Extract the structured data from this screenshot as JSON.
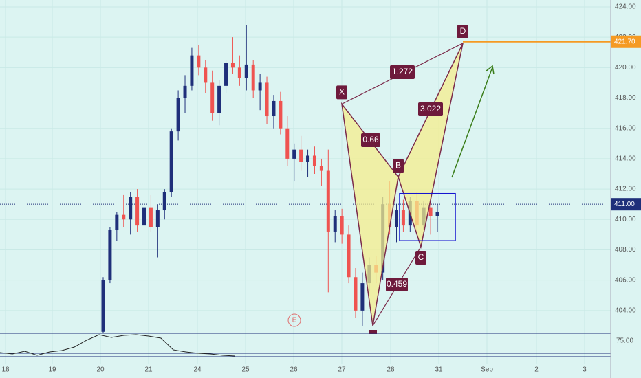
{
  "chart_data": {
    "type": "candlestick",
    "open": [
      402.6,
      406,
      409.3,
      410.3,
      410,
      411.5,
      409.6,
      410.8,
      409.5,
      410.6,
      411.8,
      415.8,
      418,
      418.8,
      420.8,
      420,
      419,
      417,
      418.8,
      420.3,
      420,
      419.3,
      420.2,
      418.5,
      419,
      416.8,
      417.8,
      416,
      414,
      414.6,
      413.8,
      414.2,
      413.5,
      413.2,
      409.2,
      410.2,
      409,
      406.2,
      404,
      405.8,
      407,
      406.5,
      411,
      409.5,
      410.6,
      409.6,
      411.2,
      409.6,
      410.8,
      410.2
    ],
    "high": [
      406.2,
      409.5,
      410.5,
      411.6,
      411.8,
      412,
      411.2,
      411.6,
      411,
      412,
      416,
      418.5,
      419.5,
      421.3,
      421.5,
      420.5,
      419.8,
      419.2,
      420.5,
      422,
      420.8,
      422.8,
      420.5,
      419.6,
      419.4,
      418.2,
      418.4,
      416.8,
      415,
      415.5,
      414.6,
      414.8,
      414,
      414.6,
      410.6,
      410.7,
      409.6,
      406.8,
      406.5,
      407.5,
      407.6,
      411.5,
      412.5,
      411,
      411.3,
      411.5,
      411.8,
      411.2,
      411.5,
      411
    ],
    "low": [
      402.5,
      405.8,
      408.6,
      409.5,
      409,
      409.2,
      408.3,
      409.2,
      407.5,
      410,
      411.5,
      415.2,
      417,
      418.5,
      419.5,
      418.3,
      416.5,
      416.2,
      418.3,
      419.6,
      418.8,
      418.5,
      418,
      417.2,
      416.3,
      416,
      415.6,
      413.5,
      412.5,
      413.2,
      412.8,
      413,
      412.2,
      405.2,
      408.5,
      408.4,
      405.8,
      403.5,
      403,
      405.3,
      405.8,
      406,
      409,
      408.5,
      409.2,
      409.2,
      409,
      409.3,
      409,
      409.2
    ],
    "close": [
      406,
      409.3,
      410.3,
      410,
      411.5,
      409.6,
      410.8,
      409.5,
      410.6,
      411.8,
      415.8,
      418,
      418.8,
      420.8,
      420,
      419,
      417,
      418.8,
      420.3,
      420,
      419.3,
      420.2,
      418.5,
      419,
      416.8,
      417.8,
      416,
      414,
      414.6,
      413.8,
      414.2,
      413.5,
      413.2,
      409.2,
      410.2,
      409,
      406.2,
      404,
      405.8,
      407,
      406.5,
      411,
      409.5,
      410.6,
      409.6,
      411.2,
      409.6,
      410.8,
      410.2,
      410.5
    ],
    "up_color": "#1f2f7a",
    "down_color": "#ef5350",
    "ylim": [
      402.5,
      424.45
    ],
    "yticks": [
      {
        "value": 404,
        "label": "404.00"
      },
      {
        "value": 406,
        "label": "406.00"
      },
      {
        "value": 408,
        "label": "408.00"
      },
      {
        "value": 410,
        "label": "410.00"
      },
      {
        "value": 412,
        "label": "412.00"
      },
      {
        "value": 414,
        "label": "414.00"
      },
      {
        "value": 416,
        "label": "416.00"
      },
      {
        "value": 418,
        "label": "418.00"
      },
      {
        "value": 420,
        "label": "420.00"
      },
      {
        "value": 422,
        "label": "422.00"
      },
      {
        "value": 424,
        "label": "424.00"
      }
    ],
    "xticks": [
      "18",
      "19",
      "20",
      "21",
      "24",
      "25",
      "26",
      "27",
      "28",
      "31",
      "Sep",
      "2",
      "3"
    ],
    "price_lines": [
      {
        "value": 421.7,
        "label": "421.70",
        "color": "#f59a23"
      },
      {
        "value": 411,
        "label": "411.00",
        "color": "#1f2f7a"
      }
    ],
    "pattern": [
      {
        "label": "X",
        "value": 417.6
      },
      {
        "label": "A",
        "value": 403.0
      },
      {
        "label": "B",
        "value": 412.8
      },
      {
        "label": "C",
        "value": 408.2
      },
      {
        "label": "D",
        "value": 421.6
      }
    ],
    "ratios": [
      "1.272",
      "0.66",
      "3.022",
      "0.459"
    ],
    "box": [
      411.7,
      408.6
    ],
    "event": "E",
    "indicator": {
      "label": "75.00",
      "ylim": [
        40,
        80
      ],
      "values": [
        52,
        50,
        54,
        48,
        53,
        55,
        60,
        70,
        78,
        74,
        77,
        78,
        76,
        73,
        56,
        53,
        51,
        50,
        48,
        47
      ]
    }
  }
}
